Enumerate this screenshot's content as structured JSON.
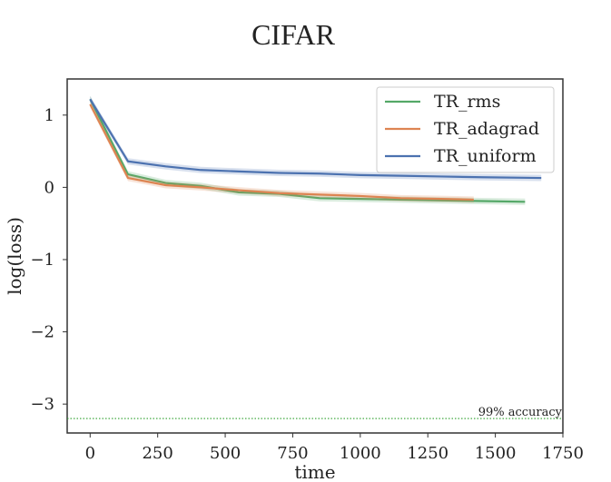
{
  "chart_data": {
    "type": "line",
    "title": "CIFAR",
    "xlabel": "time",
    "ylabel": "log(loss)",
    "xlim": [
      -85,
      1750
    ],
    "ylim": [
      -3.4,
      1.5
    ],
    "xticks": [
      0,
      250,
      500,
      750,
      1000,
      1250,
      1500,
      1750
    ],
    "yticks": [
      1,
      0,
      -1,
      -2,
      -3
    ],
    "xtick_labels": [
      "0",
      "250",
      "500",
      "750",
      "1000",
      "1250",
      "1500",
      "1750"
    ],
    "ytick_labels": [
      "1",
      "0",
      "−1",
      "−2",
      "−3"
    ],
    "grid": false,
    "legend_position": "top-right",
    "series": [
      {
        "name": "TR_rms",
        "color": "#55a868",
        "x": [
          0,
          140,
          280,
          410,
          550,
          700,
          850,
          1000,
          1150,
          1300,
          1450,
          1610
        ],
        "y": [
          1.22,
          0.18,
          0.06,
          0.02,
          -0.07,
          -0.09,
          -0.15,
          -0.16,
          -0.17,
          -0.18,
          -0.19,
          -0.2
        ]
      },
      {
        "name": "TR_adagrad",
        "color": "#dd8452",
        "x": [
          0,
          140,
          280,
          410,
          550,
          700,
          850,
          1000,
          1150,
          1300,
          1420
        ],
        "y": [
          1.15,
          0.13,
          0.03,
          0.0,
          -0.04,
          -0.08,
          -0.1,
          -0.12,
          -0.15,
          -0.16,
          -0.17
        ]
      },
      {
        "name": "TR_uniform",
        "color": "#4c72b0",
        "x": [
          0,
          140,
          280,
          410,
          550,
          700,
          850,
          1000,
          1150,
          1300,
          1450,
          1670
        ],
        "y": [
          1.22,
          0.36,
          0.29,
          0.24,
          0.22,
          0.2,
          0.19,
          0.17,
          0.16,
          0.15,
          0.14,
          0.13
        ]
      }
    ],
    "reference_line": {
      "y": -3.2,
      "label": "99% accuracy",
      "color": "#2ca02c",
      "style": "dotted"
    }
  }
}
